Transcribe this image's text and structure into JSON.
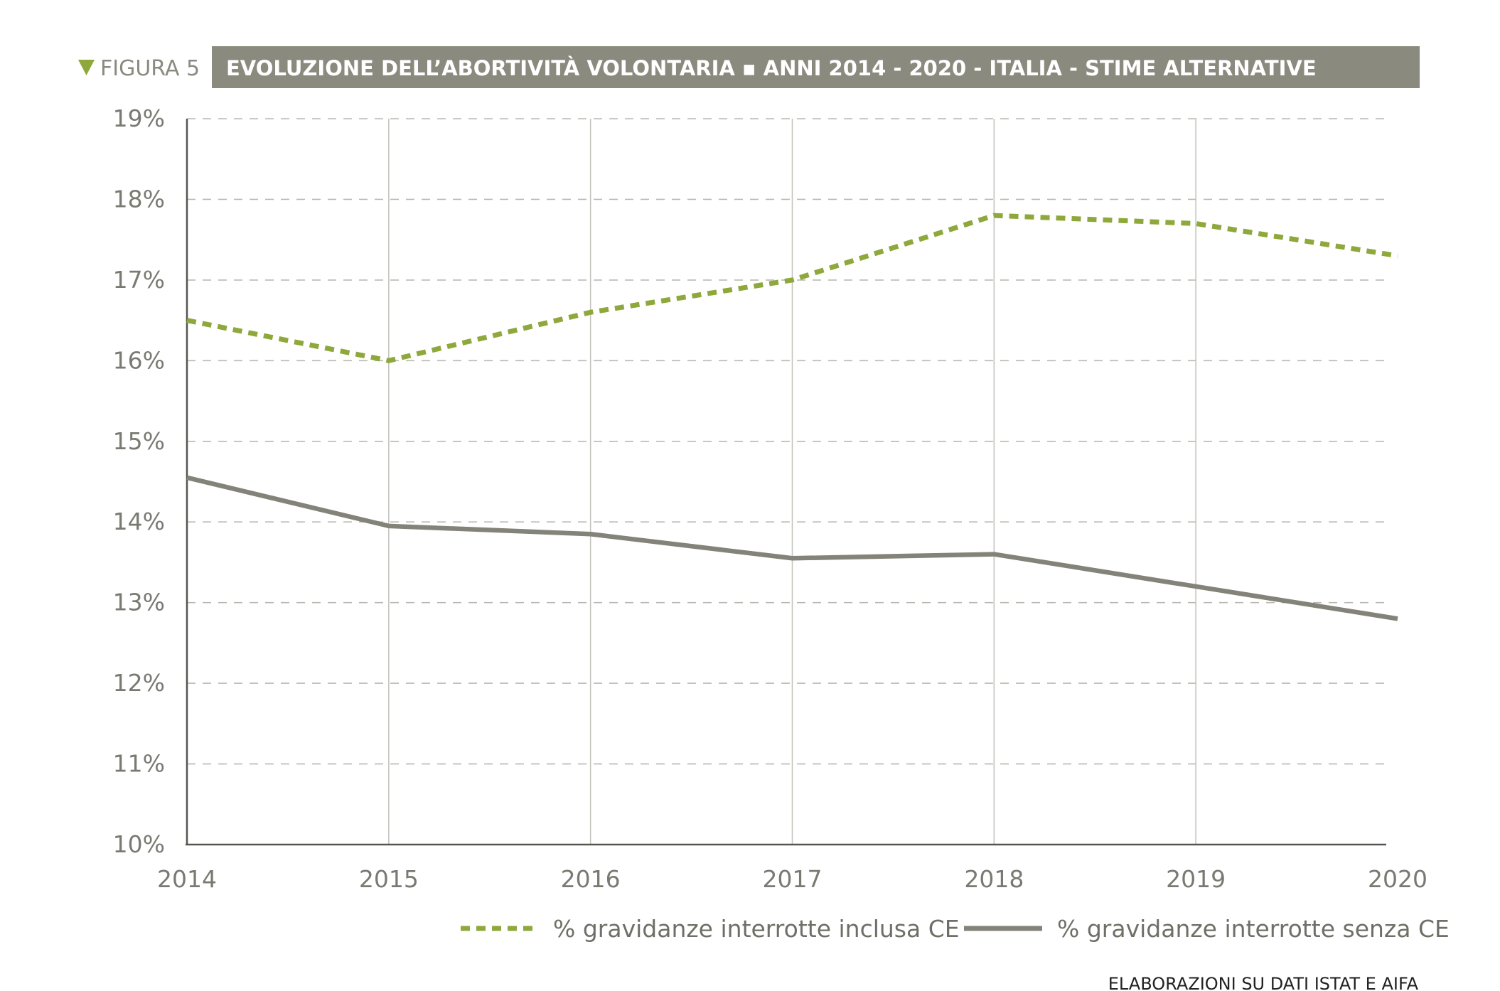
{
  "figure": {
    "label": "FIGURA 5",
    "title": "EVOLUZIONE DELL’ABORTIVITÀ VOLONTARIA ▪ ANNI 2014 - 2020 - ITALIA - STIME ALTERNATIVE",
    "source": "ELABORAZIONI SU DATI ISTAT E AIFA",
    "colors": {
      "header_bg": "#8a8a7e",
      "marker": "#8ea83c"
    }
  },
  "chart_data": {
    "type": "line",
    "x": [
      "2014",
      "2015",
      "2016",
      "2017",
      "2018",
      "2019",
      "2020"
    ],
    "y_ticks": [
      "10%",
      "11%",
      "12%",
      "13%",
      "14%",
      "15%",
      "16%",
      "17%",
      "18%",
      "19%"
    ],
    "ylim": [
      10,
      19
    ],
    "grid": {
      "horizontal": "dashed",
      "vertical": "solid"
    },
    "legend_position": "bottom",
    "series": [
      {
        "name": "% gravidanze interrotte inclusa CE",
        "values": [
          16.5,
          16.0,
          16.6,
          17.0,
          17.8,
          17.7,
          17.3
        ],
        "color": "#8ea83c",
        "style": "dashed"
      },
      {
        "name": "% gravidanze interrotte senza CE",
        "values": [
          14.55,
          13.95,
          13.85,
          13.55,
          13.6,
          13.2,
          12.8
        ],
        "color": "#848379",
        "style": "solid"
      }
    ]
  }
}
